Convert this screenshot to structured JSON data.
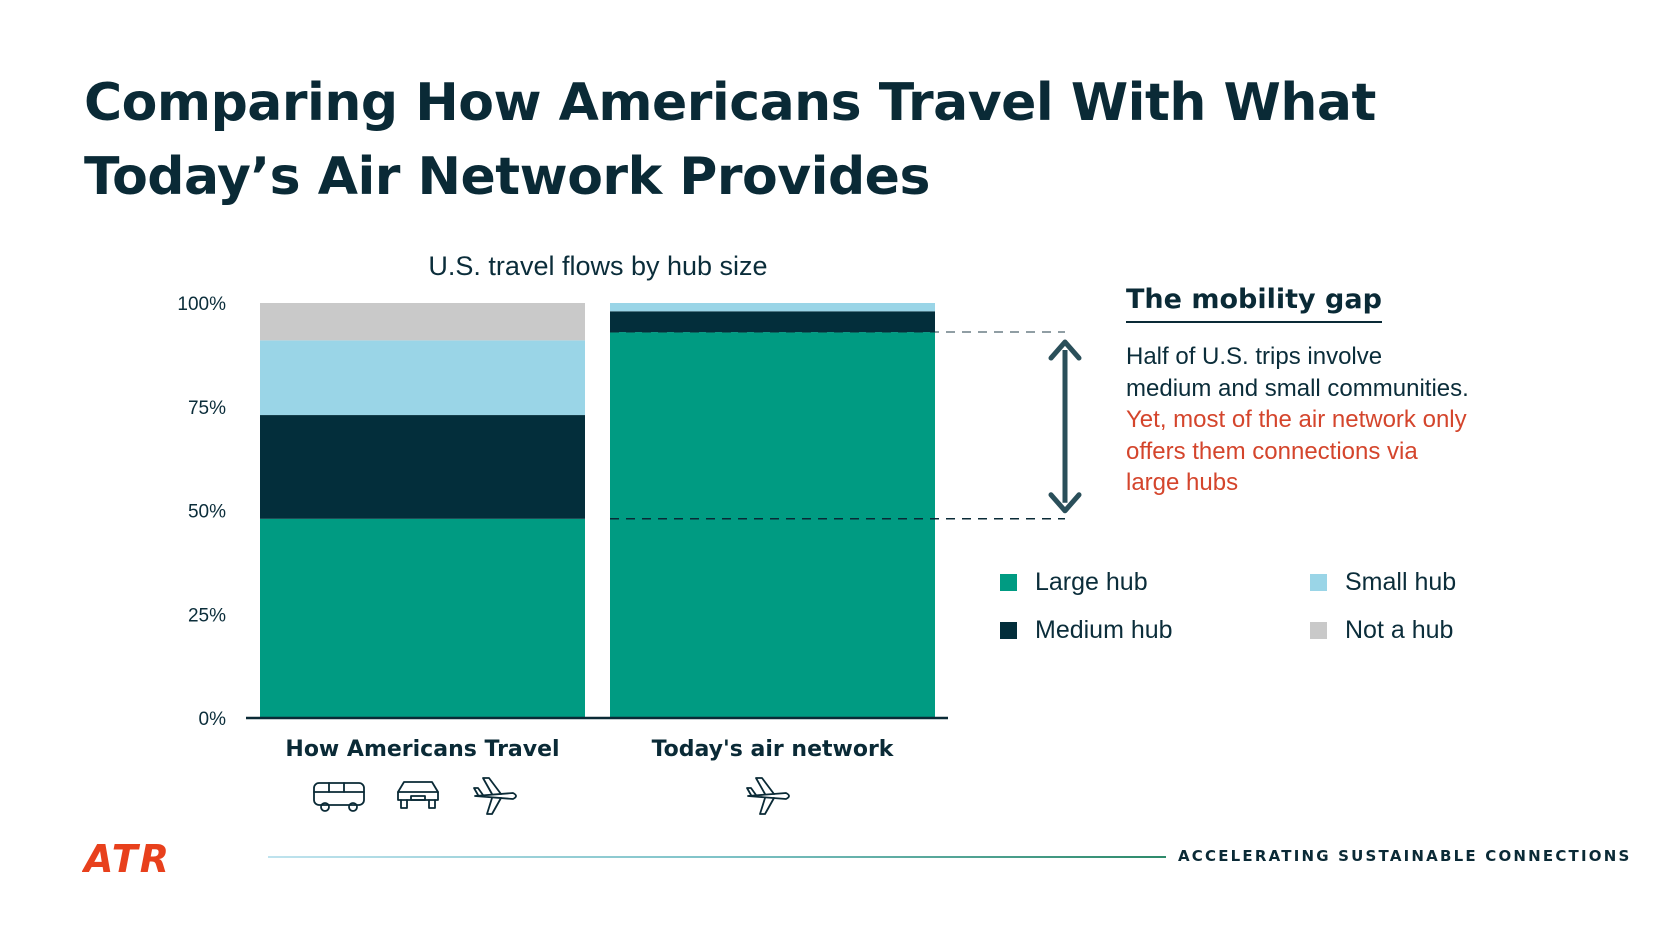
{
  "title_lines": [
    "Comparing How Americans Travel With What",
    "Today’s Air Network Provides"
  ],
  "chart_data": {
    "type": "bar",
    "stacked": true,
    "title": "U.S. travel flows by hub size",
    "categories": [
      "How Americans Travel",
      "Today's air network"
    ],
    "y_ticks": [
      "100%",
      "75%",
      "50%",
      "25%",
      "0%"
    ],
    "ylim": [
      0,
      100
    ],
    "series": [
      {
        "name": "Large hub",
        "color": "#009b82",
        "values": [
          48,
          93
        ]
      },
      {
        "name": "Medium hub",
        "color": "#032e3b",
        "values": [
          25,
          5
        ]
      },
      {
        "name": "Small hub",
        "color": "#9ad5e7",
        "values": [
          18,
          2
        ]
      },
      {
        "name": "Not a hub",
        "color": "#c9c9c9",
        "values": [
          9,
          0
        ]
      }
    ],
    "category_icons": [
      [
        "bus-icon",
        "car-icon",
        "plane-icon"
      ],
      [
        "plane-icon"
      ]
    ],
    "annotation": {
      "from": 48,
      "to": 93
    }
  },
  "gap": {
    "heading": "The mobility gap",
    "lines_dark": [
      "Half of U.S. trips involve",
      "medium and small communities."
    ],
    "lines_red": [
      "Yet, most of the air network only",
      "offers them connections via",
      "large hubs"
    ]
  },
  "footer": {
    "logo": "ATR",
    "tagline": "ACCELERATING SUSTAINABLE CONNECTIONS",
    "logo_color": "#e8401c"
  }
}
